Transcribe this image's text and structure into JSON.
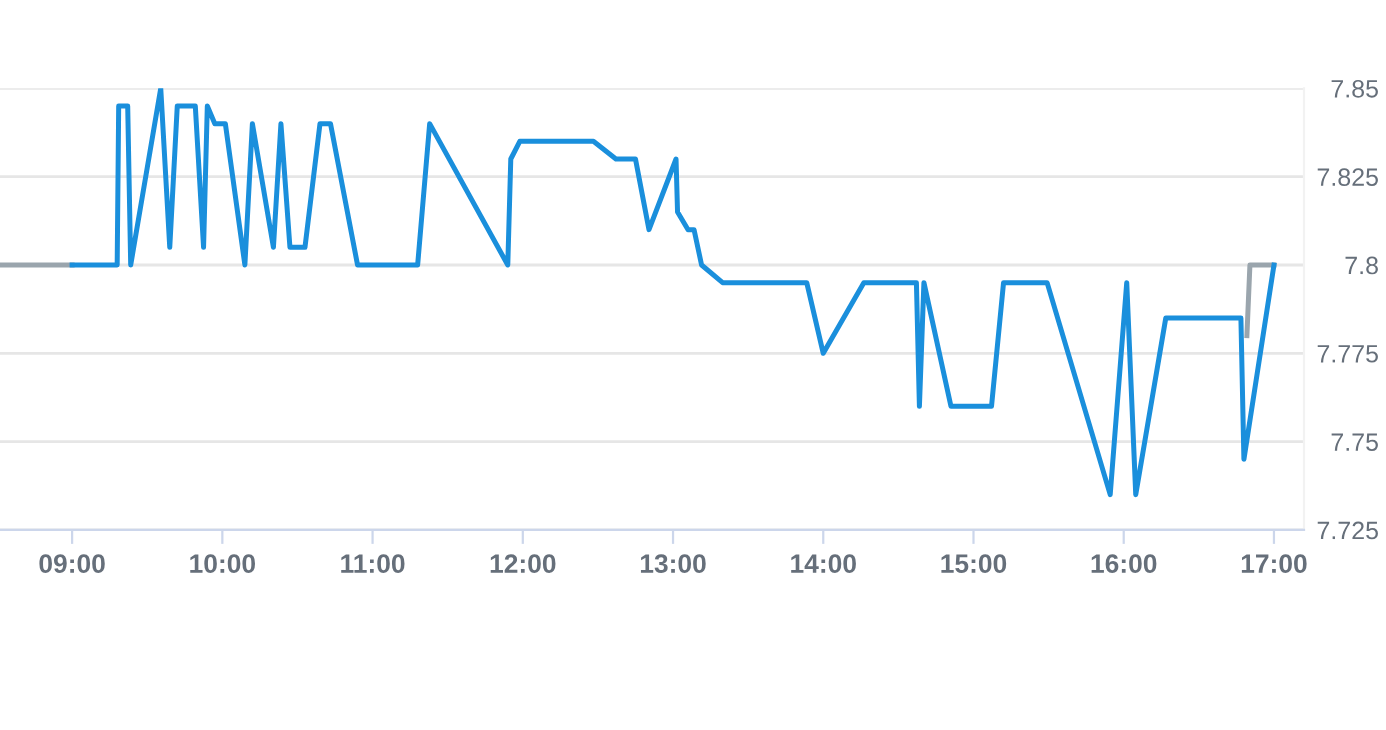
{
  "chart_data": {
    "type": "line",
    "series": [
      {
        "color": "#9aa5ad",
        "x": [
          8.52,
          9.0
        ],
        "values": [
          7.8,
          7.8
        ]
      },
      {
        "color": "#9aa5ad",
        "x": [
          16.82,
          16.84,
          17.0
        ],
        "values": [
          7.78,
          7.8,
          7.8
        ]
      },
      {
        "color": "#1a8fdc",
        "x": [
          9.0,
          9.3,
          9.31,
          9.37,
          9.39,
          9.59,
          9.65,
          9.7,
          9.82,
          9.875,
          9.9,
          9.95,
          10.02,
          10.15,
          10.2,
          10.34,
          10.39,
          10.45,
          10.55,
          10.65,
          10.72,
          10.9,
          11.3,
          11.38,
          11.9,
          11.92,
          11.98,
          12.47,
          12.62,
          12.75,
          12.84,
          13.02,
          13.03,
          13.1,
          13.14,
          13.19,
          13.33,
          13.89,
          14.0,
          14.27,
          14.62,
          14.64,
          14.67,
          14.85,
          15.12,
          15.2,
          15.49,
          15.91,
          16.02,
          16.08,
          16.28,
          16.78,
          16.8,
          17.0
        ],
        "values": [
          7.8,
          7.8,
          7.845,
          7.845,
          7.8,
          7.85,
          7.805,
          7.845,
          7.845,
          7.805,
          7.845,
          7.84,
          7.84,
          7.8,
          7.84,
          7.805,
          7.84,
          7.805,
          7.805,
          7.84,
          7.84,
          7.8,
          7.8,
          7.84,
          7.8,
          7.83,
          7.835,
          7.835,
          7.83,
          7.83,
          7.81,
          7.83,
          7.815,
          7.81,
          7.81,
          7.8,
          7.795,
          7.795,
          7.775,
          7.795,
          7.795,
          7.76,
          7.795,
          7.76,
          7.76,
          7.795,
          7.795,
          7.735,
          7.795,
          7.735,
          7.785,
          7.785,
          7.745,
          7.8
        ]
      }
    ],
    "xlim": [
      8.52,
      17.2
    ],
    "xticks": [
      {
        "value": 9,
        "label": "09:00"
      },
      {
        "value": 10,
        "label": "10:00"
      },
      {
        "value": 11,
        "label": "11:00"
      },
      {
        "value": 12,
        "label": "12:00"
      },
      {
        "value": 13,
        "label": "13:00"
      },
      {
        "value": 14,
        "label": "14:00"
      },
      {
        "value": 15,
        "label": "15:00"
      },
      {
        "value": 16,
        "label": "16:00"
      },
      {
        "value": 17,
        "label": "17:00"
      }
    ],
    "ylim": [
      7.725,
      7.85
    ],
    "yticks": [
      7.725,
      7.75,
      7.775,
      7.8,
      7.825,
      7.85
    ],
    "grid": "y",
    "legend": false,
    "marker": "none",
    "line_style": "solid"
  }
}
